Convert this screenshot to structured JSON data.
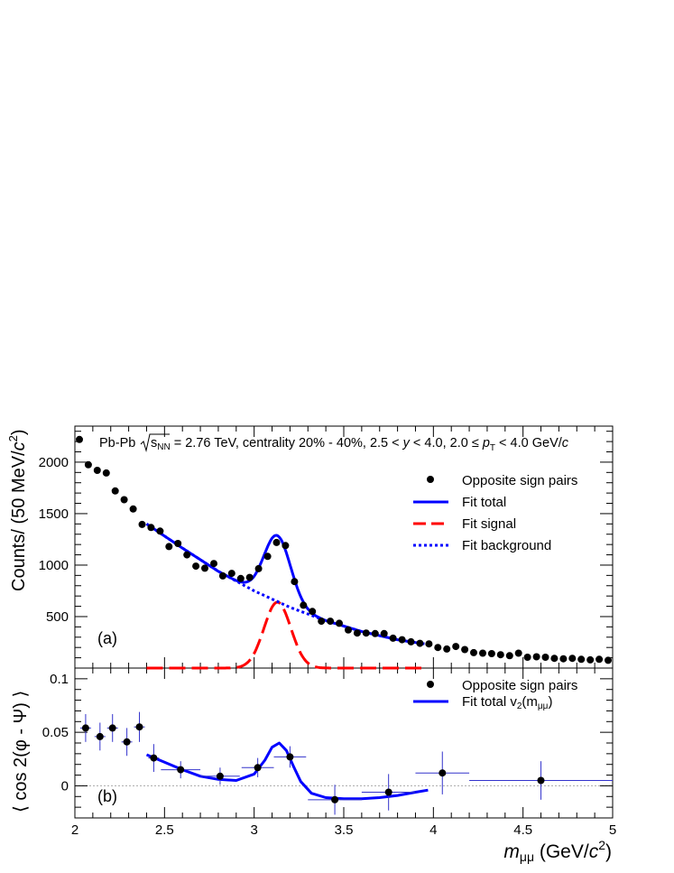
{
  "header": {
    "prefix": "Pb-Pb",
    "sqrt_label": "s",
    "sqrt_sub": "NN",
    "rest1": " = 2.76 TeV, centrality 20% - 40%, 2.5 < ",
    "y_var": "y",
    "rest2": " < 4.0, 2.0 ≤ ",
    "pt_var": "p",
    "pt_sub": "T",
    "rest3": " < 4.0 GeV/",
    "c_var": "c"
  },
  "x_axis": {
    "label_var": "m",
    "label_sub": "μμ",
    "label_unit_pre": " (GeV/",
    "label_c": "c",
    "label_sup": "2",
    "label_close": ")",
    "range": [
      2,
      5
    ],
    "ticks": [
      "2",
      "2.5",
      "3",
      "3.5",
      "4",
      "4.5",
      "5"
    ]
  },
  "top_panel": {
    "tag": "(a)",
    "y_label_main": "Counts/ (50 MeV/",
    "y_label_c": "c",
    "y_label_sup": "2",
    "y_label_close": ")",
    "y_range": [
      0,
      2350
    ],
    "y_ticks": [
      "500",
      "1000",
      "1500",
      "2000"
    ],
    "legend": [
      "Opposite sign pairs",
      "Fit total",
      "Fit signal",
      "Fit background"
    ]
  },
  "bottom_panel": {
    "tag": "(b)",
    "y_label": "⟨ cos 2(φ - Ψ) ⟩",
    "y_range": [
      -0.03,
      0.11
    ],
    "y_ticks": [
      "0",
      "0.05",
      "0.1"
    ],
    "legend": [
      "Opposite sign pairs",
      "Fit total v"
    ],
    "legend_v_sub": "2",
    "legend_v_arg_pre": "(m",
    "legend_v_arg_sub": "μμ",
    "legend_v_arg_close": ")"
  },
  "colors": {
    "points": "#000000",
    "fit_total": "#0000ff",
    "fit_signal": "#ff0000",
    "fit_background": "#0000ff",
    "v2_errors": "#3333cc",
    "zero_line": "#aaaaaa"
  },
  "chart_data": [
    {
      "type": "scatter",
      "panel": "top",
      "series": [
        {
          "name": "Opposite sign pairs",
          "x": [
            2.025,
            2.075,
            2.125,
            2.175,
            2.225,
            2.275,
            2.325,
            2.375,
            2.425,
            2.475,
            2.525,
            2.575,
            2.625,
            2.675,
            2.725,
            2.775,
            2.825,
            2.875,
            2.925,
            2.975,
            3.025,
            3.075,
            3.125,
            3.175,
            3.225,
            3.275,
            3.325,
            3.375,
            3.425,
            3.475,
            3.525,
            3.575,
            3.625,
            3.675,
            3.725,
            3.775,
            3.825,
            3.875,
            3.925,
            3.975,
            4.025,
            4.075,
            4.125,
            4.175,
            4.225,
            4.275,
            4.325,
            4.375,
            4.425,
            4.475,
            4.525,
            4.575,
            4.625,
            4.675,
            4.725,
            4.775,
            4.825,
            4.875,
            4.925,
            4.975
          ],
          "y": [
            2220,
            1975,
            1920,
            1895,
            1720,
            1635,
            1545,
            1395,
            1365,
            1330,
            1180,
            1210,
            1100,
            990,
            970,
            1015,
            895,
            920,
            870,
            880,
            965,
            1085,
            1220,
            1190,
            840,
            610,
            550,
            455,
            455,
            435,
            370,
            340,
            340,
            335,
            335,
            290,
            275,
            255,
            240,
            235,
            200,
            185,
            210,
            180,
            150,
            145,
            140,
            130,
            120,
            145,
            105,
            110,
            105,
            95,
            90,
            95,
            85,
            80,
            85,
            75
          ]
        }
      ],
      "fit_total_range": [
        2.4,
        3.95
      ],
      "fit_model": {
        "signal_mean": 3.13,
        "signal_sigma": 0.075,
        "signal_amplitude": 640,
        "background_note": "smooth decreasing background"
      },
      "background_points": [
        {
          "x": 2.4,
          "y": 1400
        },
        {
          "x": 2.6,
          "y": 1165
        },
        {
          "x": 2.8,
          "y": 940
        },
        {
          "x": 3.0,
          "y": 750
        },
        {
          "x": 3.2,
          "y": 590
        },
        {
          "x": 3.4,
          "y": 460
        },
        {
          "x": 3.6,
          "y": 355
        },
        {
          "x": 3.8,
          "y": 275
        },
        {
          "x": 3.95,
          "y": 235
        }
      ]
    },
    {
      "type": "scatter",
      "panel": "bottom",
      "series": [
        {
          "name": "Opposite sign pairs",
          "points": [
            {
              "x": 2.06,
              "xerr": 0.03,
              "y": 0.054,
              "yerr": 0.013
            },
            {
              "x": 2.14,
              "xerr": 0.03,
              "y": 0.046,
              "yerr": 0.013
            },
            {
              "x": 2.21,
              "xerr": 0.03,
              "y": 0.054,
              "yerr": 0.013
            },
            {
              "x": 2.29,
              "xerr": 0.03,
              "y": 0.041,
              "yerr": 0.013
            },
            {
              "x": 2.36,
              "xerr": 0.03,
              "y": 0.055,
              "yerr": 0.014
            },
            {
              "x": 2.44,
              "xerr": 0.03,
              "y": 0.026,
              "yerr": 0.013
            },
            {
              "x": 2.59,
              "xerr": 0.11,
              "y": 0.015,
              "yerr": 0.008
            },
            {
              "x": 2.81,
              "xerr": 0.11,
              "y": 0.009,
              "yerr": 0.008
            },
            {
              "x": 3.02,
              "xerr": 0.09,
              "y": 0.017,
              "yerr": 0.009
            },
            {
              "x": 3.2,
              "xerr": 0.09,
              "y": 0.027,
              "yerr": 0.01
            },
            {
              "x": 3.45,
              "xerr": 0.15,
              "y": -0.013,
              "yerr": 0.014
            },
            {
              "x": 3.75,
              "xerr": 0.15,
              "y": -0.006,
              "yerr": 0.017
            },
            {
              "x": 4.05,
              "xerr": 0.15,
              "y": 0.012,
              "yerr": 0.02
            },
            {
              "x": 4.6,
              "xerr": 0.4,
              "y": 0.005,
              "yerr": 0.018
            }
          ]
        }
      ],
      "fit_total_points": [
        {
          "x": 2.4,
          "y": 0.029
        },
        {
          "x": 2.5,
          "y": 0.022
        },
        {
          "x": 2.6,
          "y": 0.015
        },
        {
          "x": 2.7,
          "y": 0.009
        },
        {
          "x": 2.8,
          "y": 0.006
        },
        {
          "x": 2.9,
          "y": 0.005
        },
        {
          "x": 3.0,
          "y": 0.011
        },
        {
          "x": 3.06,
          "y": 0.024
        },
        {
          "x": 3.1,
          "y": 0.036
        },
        {
          "x": 3.14,
          "y": 0.04
        },
        {
          "x": 3.18,
          "y": 0.033
        },
        {
          "x": 3.22,
          "y": 0.018
        },
        {
          "x": 3.26,
          "y": 0.004
        },
        {
          "x": 3.32,
          "y": -0.007
        },
        {
          "x": 3.4,
          "y": -0.011
        },
        {
          "x": 3.5,
          "y": -0.012
        },
        {
          "x": 3.6,
          "y": -0.012
        },
        {
          "x": 3.7,
          "y": -0.011
        },
        {
          "x": 3.8,
          "y": -0.009
        },
        {
          "x": 3.9,
          "y": -0.006
        },
        {
          "x": 3.97,
          "y": -0.004
        }
      ]
    }
  ]
}
